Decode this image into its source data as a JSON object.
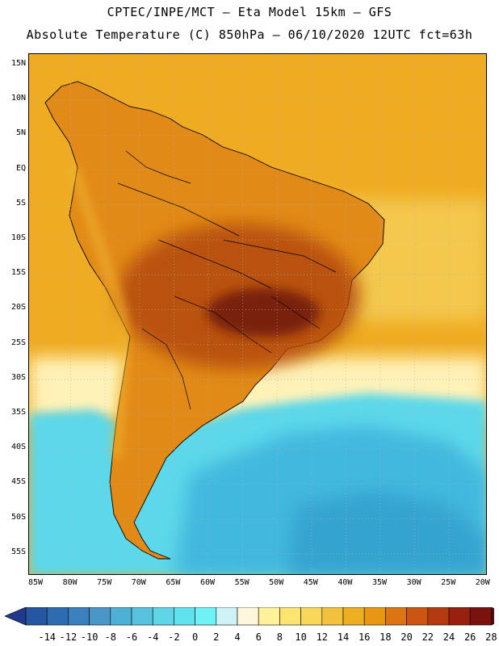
{
  "header": {
    "line1": "CPTEC/INPE/MCT –  Eta Model 15km – GFS",
    "line2": "Absolute Temperature (C) 850hPa – 06/10/2020 12UTC fct=63h"
  },
  "axes": {
    "lat_labels": [
      "15N",
      "10N",
      "5N",
      "EQ",
      "5S",
      "10S",
      "15S",
      "20S",
      "25S",
      "30S",
      "35S",
      "40S",
      "45S",
      "50S",
      "55S"
    ],
    "lon_labels": [
      "85W",
      "80W",
      "75W",
      "70W",
      "65W",
      "60W",
      "55W",
      "50W",
      "45W",
      "40W",
      "35W",
      "30W",
      "25W",
      "20W"
    ]
  },
  "colorbar": {
    "labels": [
      "-14",
      "-12",
      "-10",
      "-8",
      "-6",
      "-4",
      "-2",
      "0",
      "2",
      "4",
      "6",
      "8",
      "10",
      "12",
      "14",
      "16",
      "18",
      "20",
      "22",
      "24",
      "26",
      "28"
    ],
    "colors": [
      "#1f3a8a",
      "#2556a2",
      "#2d6cb0",
      "#3a80bd",
      "#4b96c9",
      "#4fb0d6",
      "#59c3df",
      "#5fd5e8",
      "#5ee3ef",
      "#6ff2f5",
      "#cdf3f7",
      "#fff6dc",
      "#fff29a",
      "#fbe46f",
      "#f8d75a",
      "#f2c23e",
      "#eeae22",
      "#e79712",
      "#dd7414",
      "#cc5512",
      "#b63a10",
      "#97210e",
      "#7a130d",
      "#5e0a16"
    ]
  },
  "map": {
    "ocean_color": "#efac22",
    "land_color": "#e28a17",
    "hot_core_color": "#b34a10",
    "cold_south_color": "#5cd8ea",
    "deep_cold_color": "#3cb3dc",
    "cool_band_color": "#fff2b8"
  }
}
